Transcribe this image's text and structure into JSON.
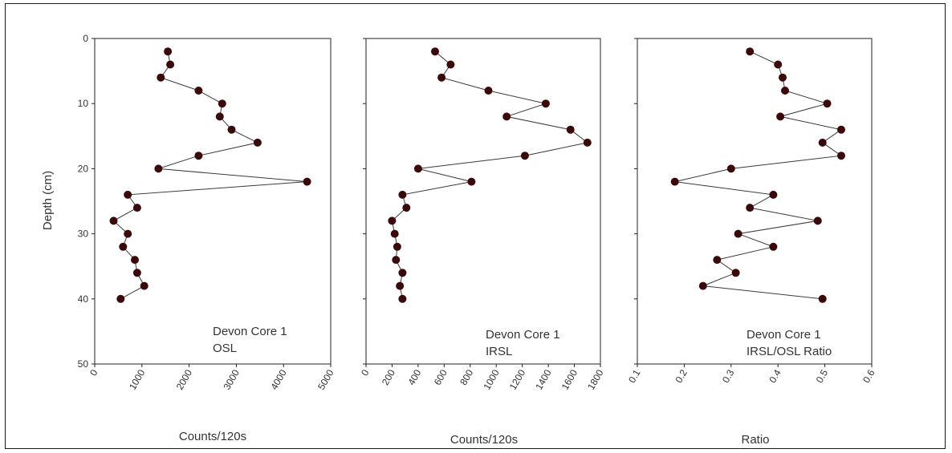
{
  "chart_data": [
    {
      "type": "scatter",
      "lines": true,
      "annotation": [
        "Devon Core 1",
        "OSL"
      ],
      "xlabel": "Counts/120s",
      "ylabel": "Depth (cm)",
      "xlim": [
        0,
        5000
      ],
      "ylim": [
        0,
        50
      ],
      "y_inverted": true,
      "xticks": [
        0,
        1000,
        2000,
        3000,
        4000,
        5000
      ],
      "yticks": [
        0,
        10,
        20,
        30,
        40,
        50
      ],
      "grid": false,
      "colors": {
        "marker": "#3a0a0a",
        "line": "#3a3a3a"
      },
      "series": [
        {
          "x": [
            1550,
            1600,
            1400,
            2200,
            2700,
            2650,
            2900,
            3450,
            2200,
            1350,
            4500,
            700,
            900,
            400,
            700,
            600,
            850,
            900,
            1050,
            550
          ],
          "y": [
            2,
            4,
            6,
            8,
            10,
            12,
            14,
            16,
            18,
            20,
            22,
            24,
            26,
            28,
            30,
            32,
            34,
            36,
            38,
            40
          ]
        }
      ]
    },
    {
      "type": "scatter",
      "lines": true,
      "annotation": [
        "Devon Core 1",
        "IRSL"
      ],
      "xlabel": "Counts/120s",
      "ylabel": "",
      "xlim": [
        0,
        1800
      ],
      "ylim": [
        0,
        50
      ],
      "y_inverted": true,
      "xticks": [
        0,
        200,
        400,
        600,
        800,
        1000,
        1200,
        1400,
        1600,
        1800
      ],
      "yticks": [
        0,
        10,
        20,
        30,
        40,
        50
      ],
      "grid": false,
      "colors": {
        "marker": "#3a0a0a",
        "line": "#3a3a3a"
      },
      "series": [
        {
          "x": [
            530,
            650,
            580,
            940,
            1380,
            1080,
            1570,
            1700,
            1220,
            400,
            810,
            280,
            310,
            200,
            220,
            240,
            230,
            280,
            260,
            280
          ],
          "y": [
            2,
            4,
            6,
            8,
            10,
            12,
            14,
            16,
            18,
            20,
            22,
            24,
            26,
            28,
            30,
            32,
            34,
            36,
            38,
            40
          ]
        }
      ]
    },
    {
      "type": "scatter",
      "lines": true,
      "annotation": [
        "Devon Core 1",
        "IRSL/OSL Ratio"
      ],
      "xlabel": "Ratio",
      "ylabel": "",
      "xlim": [
        0.1,
        0.6
      ],
      "ylim": [
        0,
        50
      ],
      "y_inverted": true,
      "xticks": [
        0.1,
        0.2,
        0.3,
        0.4,
        0.5,
        0.6
      ],
      "yticks": [
        0,
        10,
        20,
        30,
        40,
        50
      ],
      "grid": false,
      "colors": {
        "marker": "#3a0a0a",
        "line": "#3a3a3a"
      },
      "series": [
        {
          "x": [
            0.34,
            0.4,
            0.41,
            0.415,
            0.505,
            0.405,
            0.535,
            0.495,
            0.535,
            0.3,
            0.18,
            0.39,
            0.34,
            0.485,
            0.315,
            0.39,
            0.27,
            0.31,
            0.24,
            0.495
          ],
          "y": [
            2,
            4,
            6,
            8,
            10,
            12,
            14,
            16,
            18,
            20,
            22,
            24,
            26,
            28,
            30,
            32,
            34,
            36,
            38,
            40
          ]
        }
      ]
    }
  ]
}
